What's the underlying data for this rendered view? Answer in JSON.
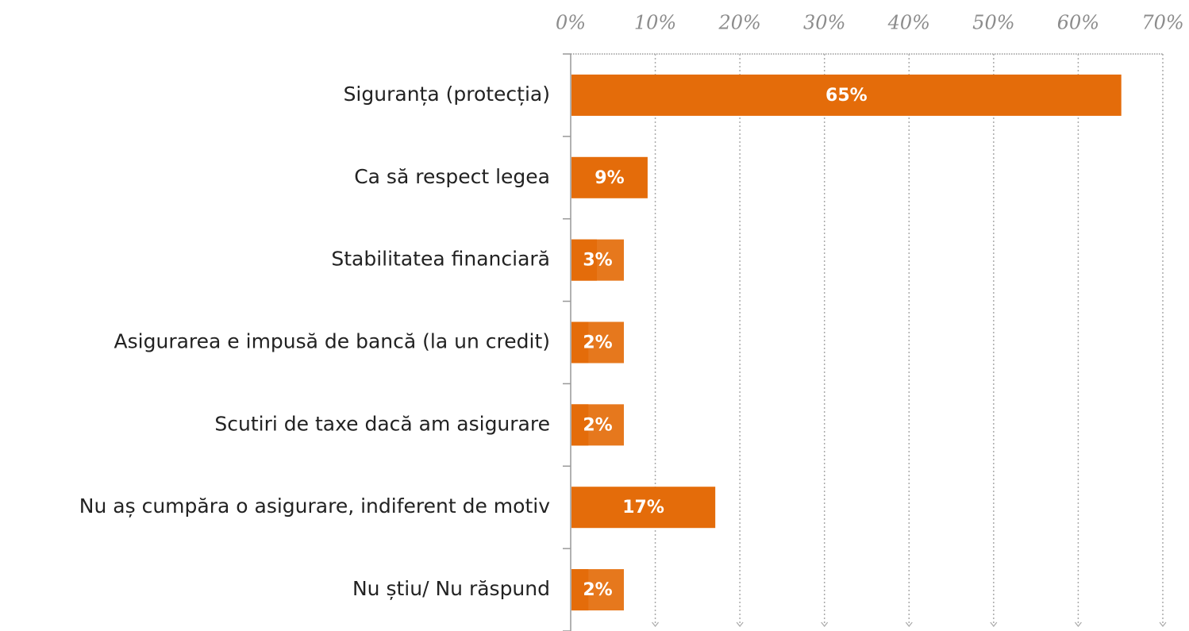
{
  "chart_data": {
    "type": "barh",
    "categories": [
      "Siguranța (protecția)",
      "Ca să respect legea",
      "Stabilitatea financiară",
      "Asigurarea e impusă de bancă (la un credit)",
      "Scutiri de taxe dacă am asigurare",
      "Nu aș cumpăra o asigurare, indiferent de motiv",
      "Nu știu/ Nu răspund"
    ],
    "values": [
      65,
      9,
      3,
      2,
      2,
      17,
      2
    ],
    "value_labels": [
      "65%",
      "9%",
      "3%",
      "2%",
      "2%",
      "17%",
      "2%"
    ],
    "color": "#e46c0a",
    "xlim": [
      0,
      70
    ],
    "xticks": [
      {
        "value": 0,
        "label": "0%"
      },
      {
        "value": 10,
        "label": "10%"
      },
      {
        "value": 20,
        "label": "20%"
      },
      {
        "value": 30,
        "label": "30%"
      },
      {
        "value": 40,
        "label": "40%"
      },
      {
        "value": 50,
        "label": "50%"
      },
      {
        "value": 60,
        "label": "60%"
      },
      {
        "value": 70,
        "label": "70%"
      }
    ],
    "grid": true
  }
}
